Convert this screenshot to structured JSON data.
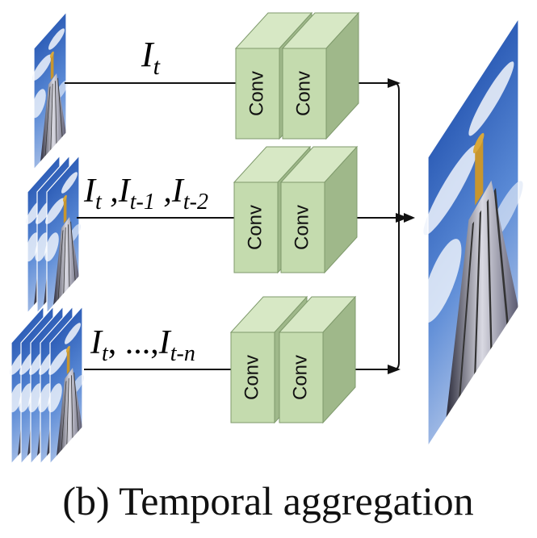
{
  "caption": "(b) Temporal aggregation",
  "branches": [
    {
      "label_main": "I",
      "label_parts": [
        {
          "base": "I",
          "sub": "t"
        }
      ],
      "conv_labels": [
        "Conv",
        "Conv"
      ]
    },
    {
      "label_parts": [
        {
          "base": "I",
          "sub": "t"
        },
        {
          "sep": " ,"
        },
        {
          "base": "I",
          "sub": "t-1"
        },
        {
          "sep": " ,"
        },
        {
          "base": "I",
          "sub": "t-2"
        }
      ],
      "conv_labels": [
        "Conv",
        "Conv"
      ]
    },
    {
      "label_parts": [
        {
          "base": "I",
          "sub": "t"
        },
        {
          "sep": ", ...,"
        },
        {
          "base": "I",
          "sub": "t-n"
        }
      ],
      "conv_labels": [
        "Conv",
        "Conv"
      ]
    }
  ],
  "colors": {
    "block_front": "#c4dbae",
    "block_top": "#d7e8c5",
    "block_side": "#9fb88a",
    "block_stroke": "#7f9a6c",
    "sky": "#3f6fc2",
    "cloud": "#e8eef8",
    "line": "#111111"
  },
  "icons": [
    "input-frame-stack-icon",
    "output-frame-icon",
    "arrow-head-icon"
  ]
}
